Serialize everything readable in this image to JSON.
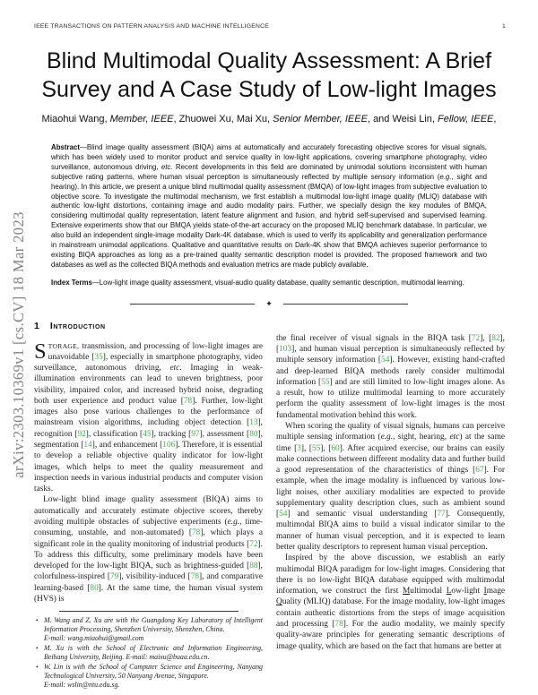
{
  "colors": {
    "citation_green": "#3cb44b",
    "watermark_gray": "#828282"
  },
  "meta": {
    "arxiv_watermark": "arXiv:2303.10369v1  [cs.CV]  18 Mar 2023"
  },
  "running_head": {
    "journal": "IEEE TRANSACTIONS ON PATTERN ANALYSIS AND MACHINE INTELLIGENCE",
    "page_number": "1"
  },
  "title_lines": [
    "Blind Multimodal Quality Assessment: A Brief",
    "Survey and A Case Study of Low-light Images"
  ],
  "authors_line": "Miaohui Wang, *Member, IEEE*, Zhuowei Xu, Mai Xu, *Senior Member, IEEE*, and Weisi Lin, *Fellow, IEEE*,",
  "abstract": {
    "label": "Abstract",
    "text": "—Blind image quality assessment (BIQA) aims at automatically and accurately forecasting objective scores for visual signals, which has been widely used to monitor product and service quality in low-light applications, covering smartphone photography, video surveillance, autonomous driving, *etc.* Recent developments in this field are dominated by unimodal solutions inconsistent with human subjective rating patterns, where human visual perception is simultaneously reflected by multiple sensory information (*e.g.*, sight and hearing). In this article, we present a unique blind multimodal quality assessment (BMQA) of low-light images from subjective evaluation to objective score. To investigate the multimodal mechanism, we first establish a multimodal low-light image quality (MLIQ) database with authentic low-light distortions, containing image and audio modality pairs. Further, we specially design the key modules of BMQA, considering multimodal quality representation, latent feature alignment and fusion, and hybrid self-supervised and supervised learning. Extensive experiments show that our BMQA yields state-of-the-art accuracy on the proposed MLIQ benchmark database. In particular, we also build an independent single-image modality Dark-4K database, which is used to verify its applicability and generalization performance in mainstream unimodal applications. Qualitative and quantitative results on Dark-4K show that BMQA achieves superior performance to existing BIQA approaches as long as a pre-trained quality semantic description model is provided. The proposed framework and two databases as well as the collected BIQA methods and evaluation metrics are made publicly available."
  },
  "index_terms": {
    "label": "Index Terms",
    "text": "—Low-light image quality assessment, visual-audio quality database, quality semantic description, multimodal learning."
  },
  "ornament": "✦",
  "section1": {
    "number": "1",
    "title": "Introduction",
    "dropcap": "S",
    "lead": "TORAGE,",
    "p1_rest": " transmission, and processing of low-light images are unavoidable [35], especially in smartphone photography, video surveillance, autonomous driving, *etc.* Imaging in weak-illumination environments can lead to uneven brightness, poor visibility, impaired color, and increased hybrid noise, degrading both user experience and product value [78]. Further, low-light images also pose various challenges to the performance of mainstream vision algorithms, including object detection [13], recognition [92], classification [45], tracking [97], assessment [80], segmentation [14], and enhancement [106]. Therefore, it is essential to develop a reliable objective quality indicator for low-light images, which helps to meet the quality measurement and inspection needs in various industrial products and computer vision tasks.",
    "p2": "Low-light blind image quality assessment (BIQA) aims to automatically and accurately estimate objective scores, thereby avoiding multiple obstacles of subjective experiments (*e.g.*, time-consuming, unstable, and non-automated) [78], which plays a significant role in the quality monitoring of industrial products [72]. To address this difficulty, some preliminary models have been developed for the low-light BIQA, such as brightness-guided [88], colorfulness-inspired [79], visibility-induced [78], and comparative learning-based [80]. At the same time, the human visual system (HVS) is",
    "p3": "the final receiver of visual signals in the BIQA task [72], [82], [103], and human visual perception is simultaneously reflected by multiple sensory information [54]. However, existing hand-crafted and deep-learned BIQA methods rarely consider multimodal information [55] and are still limited to low-light images alone. As a result, how to utilize multimodal learning to more accurately perform the quality assessment of low-light images is the most fundamental motivation behind this work.",
    "p4": "When scoring the quality of visual signals, humans can perceive multiple sensing information (*e.g.*, sight, hearing, *etc*) at the same time [3], [55], [60]. After acquired exercise, our brains can easily make connections between different modality data and further build a good representation of the characteristics of things [67]. For example, when the image modality is influenced by various low-light noises, other auxiliary modalities are expected to provide supplementary quality description clues, such as ambient sound [54] and semantic visual understanding [77]. Consequently, multimodal BIQA aims to build a visual indicator similar to the manner of human visual perception, and it is expected to learn better quality descriptors to represent human visual perception.",
    "p5": "Inspired by the above discussion, we establish an early multimodal BIQA paradigm for low-light images. Considering that there is no low-light BIQA database equipped with multimodal information, we construct the first _M_ultimodal _L_ow-light _I_mage _Q_uality (MLIQ) database. For the image modality, low-light images contain authentic distortions from the steps of image acquisition and processing [78]. For the audio modality, we mainly specify quality-aware principles for generating semantic descriptions of image quality, which are based on the fact that humans are better at"
  },
  "footnotes": [
    {
      "text": "M. Wang and Z. Xu are with the Guangdong Key Laboratory of Intelligent Information Processing, Shenzhen University, Shenzhen, China.\nE-mail: wang.miaohui@gmail.com"
    },
    {
      "text": "M. Xu is with the School of Electronic and Information Engineering, Beihang University, Beijing. E-mail: maixu@buaa.edu.cn."
    },
    {
      "text": "W. Lin is with the School of Computer Science and Engineering, Nanyang Technological University, 50 Nanyang Avenue, Singapore.\nE-mail: wslin@ntu.edu.sg."
    }
  ]
}
